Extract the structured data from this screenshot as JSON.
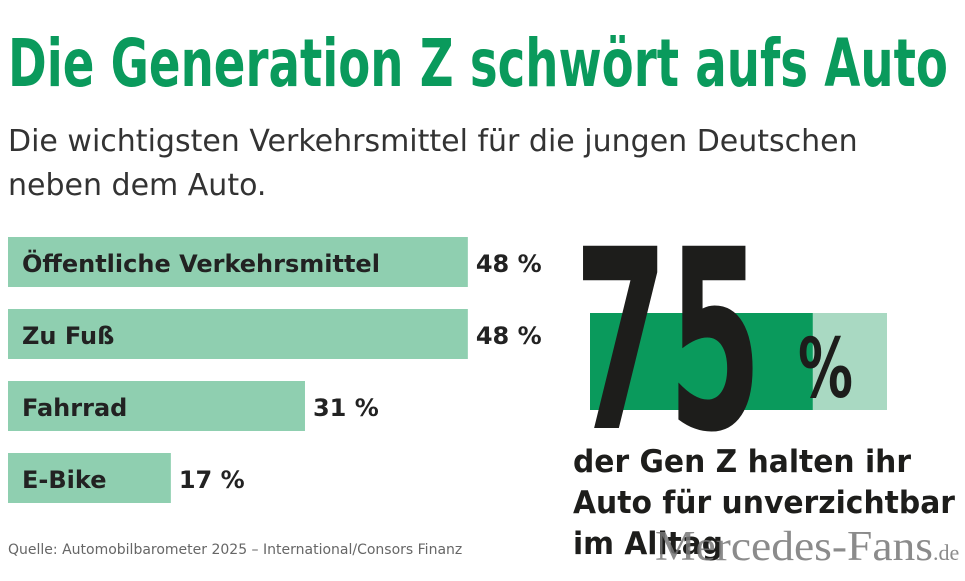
{
  "chart_data": {
    "type": "hbar",
    "title": "Die Generation Z schwört aufs Auto",
    "subtitle": [
      "Die wichtigsten Verkehrsmittel für die jungen Deutschen",
      "neben dem Auto."
    ],
    "categories": [
      "Öffentliche Verkehrsmittel",
      "Zu Fuß",
      "Fahrrad",
      "E-Bike"
    ],
    "values": [
      48,
      48,
      31,
      17
    ],
    "value_labels": [
      "48 %",
      "48 %",
      "31 %",
      "17 %"
    ],
    "color": "#8fcfb0",
    "xlim": [
      0,
      100
    ],
    "source": "Quelle: Automobilbarometer 2025 – International/Consors Finanz"
  },
  "highlight": {
    "value": 75,
    "unit": "%",
    "lim": [
      0,
      100
    ],
    "color": "#0a9a5c",
    "track_color": "#a9d9c2",
    "text_lines": [
      "der Gen Z halten ihr",
      "Auto für unverzichtbar",
      "im Alltag"
    ]
  },
  "watermark": {
    "name": "Mercedes-Fans",
    "suffix": ".de"
  }
}
